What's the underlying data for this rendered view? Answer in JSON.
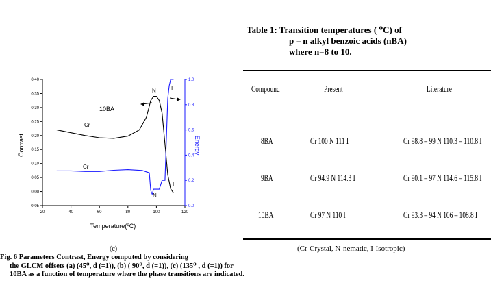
{
  "figure": {
    "curve_label_sample": "10BA",
    "curve_label_cr_top": "Cr",
    "curve_label_cr_bottom": "Cr",
    "phase_label_n_top": "N",
    "phase_label_i_top": "I",
    "phase_label_n_bottom": "N",
    "phase_label_i_bottom": "I",
    "sub_label": "(c)",
    "caption_line1": "Fig. 6  Parameters Contrast, Energy  computed by considering",
    "caption_rest": "the GLCM offsets  (a) (45⁰, d (=1)), (b)  ( 90⁰, d (=1)), (c)  (135⁰ , d (=1))  for 10BA as a function of temperature where the phase transitions are indicated."
  },
  "chart_data": {
    "type": "line",
    "xlabel": "Temperature(⁰C)",
    "ylabel": "Contrast",
    "y2label": "Energy",
    "xlim": [
      20,
      120
    ],
    "ylim": [
      -0.05,
      0.4
    ],
    "y2lim": [
      0.0,
      1.0
    ],
    "x_ticks": [
      "20",
      "40",
      "60",
      "80",
      "100",
      "120"
    ],
    "y_ticks": [
      "-0.05",
      "0.00",
      "0.05",
      "0.10",
      "0.15",
      "0.20",
      "0.25",
      "0.30",
      "0.35",
      "0.40"
    ],
    "y2_ticks": [
      "0.0",
      "0.2",
      "0.4",
      "0.6",
      "0.8",
      "1.0"
    ],
    "series": [
      {
        "name": "Contrast",
        "axis": "left",
        "color": "#000000",
        "x": [
          30,
          40,
          50,
          60,
          70,
          80,
          88,
          93,
          96,
          98,
          100,
          102,
          104,
          106,
          108,
          110,
          112
        ],
        "y": [
          0.22,
          0.21,
          0.2,
          0.192,
          0.19,
          0.198,
          0.22,
          0.265,
          0.325,
          0.34,
          0.34,
          0.325,
          0.28,
          0.17,
          0.06,
          0.01,
          -0.005
        ]
      },
      {
        "name": "Energy",
        "axis": "right",
        "color": "#1a1aff",
        "x": [
          30,
          40,
          50,
          60,
          70,
          80,
          90,
          95,
          96,
          97,
          98,
          100,
          102,
          104,
          106,
          108,
          109,
          110,
          112
        ],
        "y": [
          0.275,
          0.275,
          0.27,
          0.27,
          0.28,
          0.285,
          0.278,
          0.26,
          0.12,
          0.09,
          0.13,
          0.13,
          0.13,
          0.2,
          0.2,
          0.85,
          0.95,
          1.0,
          1.0
        ]
      }
    ]
  },
  "table": {
    "title_line1": "Table 1: Transition temperatures ( ⁰C) of",
    "title_line2": "p – n alkyl benzoic acids (nBA)",
    "title_line3": "where n=8 to 10.",
    "headers": [
      "Compound",
      "Present",
      "Literature"
    ],
    "rows": [
      [
        "8BA",
        "Cr 100 N 111 I",
        "Cr 98.8 – 99 N 110.3 – 110.8 I"
      ],
      [
        "9BA",
        "Cr 94.9 N 114.3 I",
        "Cr 90.1 – 97 N 114.6 – 115.8 I"
      ],
      [
        "10BA",
        "Cr 97 N 110 I",
        "Cr 93.3 – 94 N 106 – 108.8 I"
      ]
    ],
    "footnote": "(Cr-Crystal, N-nematic, I-Isotropic)"
  }
}
